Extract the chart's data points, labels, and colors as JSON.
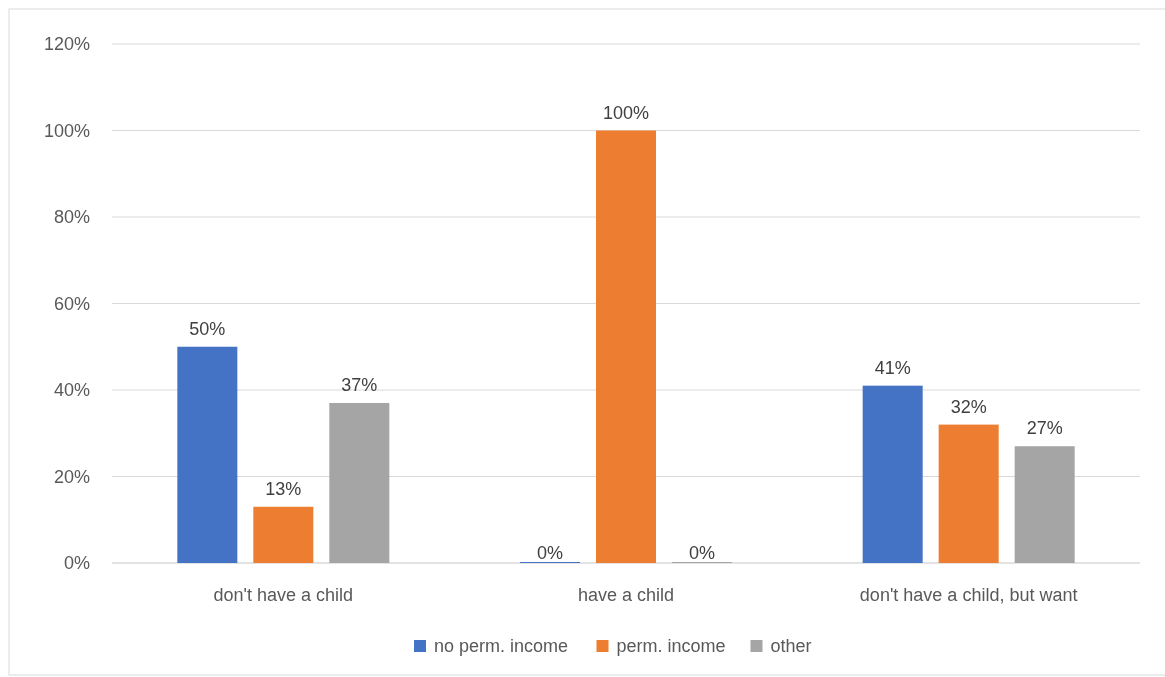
{
  "chart_data": {
    "type": "bar",
    "categories": [
      "don't have a child",
      "have a child",
      "don't have a child, but want"
    ],
    "series": [
      {
        "name": "no perm. income",
        "color": "#4472c4",
        "values": [
          50,
          0,
          41
        ],
        "value_labels": [
          "50%",
          "0%",
          "41%"
        ]
      },
      {
        "name": "perm. income",
        "color": "#ed7d31",
        "values": [
          13,
          100,
          32
        ],
        "value_labels": [
          "13%",
          "100%",
          "32%"
        ]
      },
      {
        "name": "other",
        "color": "#a5a5a5",
        "values": [
          37,
          0,
          27
        ],
        "value_labels": [
          "37%",
          "0%",
          "27%"
        ]
      }
    ],
    "ylim": [
      0,
      120
    ],
    "yticks": [
      {
        "value": 0,
        "label": "0%"
      },
      {
        "value": 20,
        "label": "20%"
      },
      {
        "value": 40,
        "label": "40%"
      },
      {
        "value": 60,
        "label": "60%"
      },
      {
        "value": 80,
        "label": "80%"
      },
      {
        "value": 100,
        "label": "100%"
      },
      {
        "value": 120,
        "label": "120%"
      }
    ],
    "grid": "y",
    "legend": "bottom"
  }
}
